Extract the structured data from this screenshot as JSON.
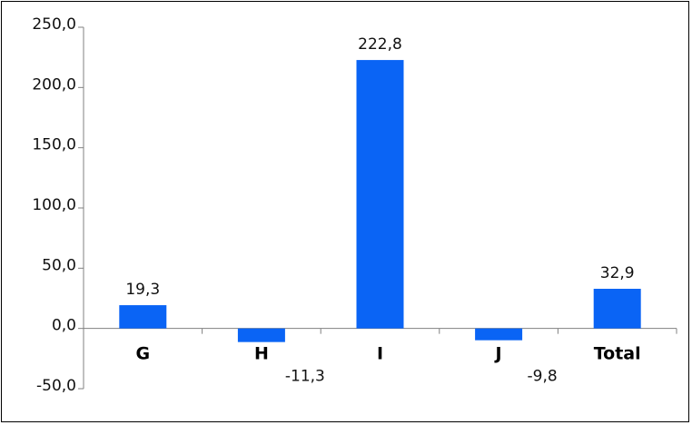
{
  "chart_data": {
    "type": "bar",
    "title": "",
    "xlabel": "",
    "ylabel": "",
    "categories": [
      "G",
      "H",
      "I",
      "J",
      "Total"
    ],
    "values": [
      19.3,
      -11.3,
      222.8,
      -9.8,
      32.9
    ],
    "value_labels": [
      "19,3",
      "-11,3",
      "222,8",
      "-9,8",
      "32,9"
    ],
    "ylim": [
      -50,
      250
    ],
    "yticks": [
      250,
      200,
      150,
      100,
      50,
      0,
      -50
    ],
    "ytick_labels": [
      "250,0",
      "200,0",
      "150,0",
      "100,0",
      "50,0",
      "0,0",
      "-50,0"
    ],
    "grid": false,
    "legend": "none",
    "bar_color": "#0a64f5"
  }
}
